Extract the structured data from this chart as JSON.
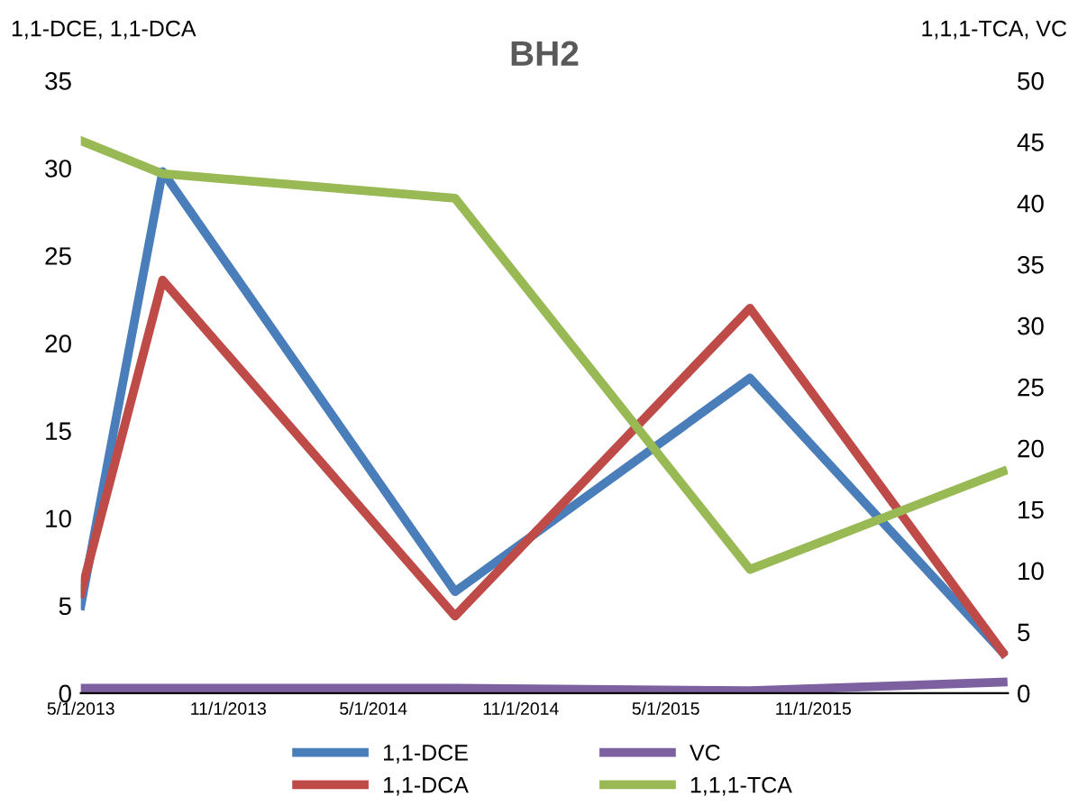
{
  "chart_data": {
    "type": "line",
    "title": "BH2",
    "ylabel": "1,1-DCE, 1,1-DCA",
    "y2label": "1,1,1-TCA, VC",
    "x": [
      "2013-05-01",
      "2013-08-11",
      "2014-08-11",
      "2015-08-14",
      "2016-06-25"
    ],
    "series": [
      {
        "name": "1,1-DCE",
        "color": "#4a7ebb",
        "values": [
          5.0,
          29.8,
          5.8,
          18.0,
          2.3
        ]
      },
      {
        "name": "1,1-DCA",
        "color": "#be4b48",
        "values": [
          5.7,
          23.6,
          4.4,
          22.0,
          2.3
        ]
      },
      {
        "name": "VC",
        "color": "#7d60a0",
        "axis": "y2",
        "values": [
          0.4,
          0.4,
          0.4,
          0.2,
          0.9
        ]
      },
      {
        "name": "1,1,1-TCA",
        "color": "#98b954",
        "axis": "y2",
        "values": [
          45.1,
          42.4,
          40.4,
          10.1,
          18.1
        ]
      }
    ],
    "xlim": [
      "2013-05-01",
      "2016-07-01"
    ],
    "xticks": [
      {
        "value": "2013-05-01",
        "label": "5/1/2013"
      },
      {
        "value": "2013-11-01",
        "label": "11/1/2013"
      },
      {
        "value": "2014-05-01",
        "label": "5/1/2014"
      },
      {
        "value": "2014-11-01",
        "label": "11/1/2014"
      },
      {
        "value": "2015-05-01",
        "label": "5/1/2015"
      },
      {
        "value": "2015-11-01",
        "label": "11/1/2015"
      }
    ],
    "ylim": [
      0,
      35
    ],
    "yticks": [
      0,
      5,
      10,
      15,
      20,
      25,
      30,
      35
    ],
    "y2lim": [
      0,
      50
    ],
    "y2ticks": [
      0,
      5,
      10,
      15,
      20,
      25,
      30,
      35,
      40,
      45,
      50
    ],
    "grid": false,
    "legend": "bottom",
    "marker": "none",
    "line_style": "solid"
  }
}
